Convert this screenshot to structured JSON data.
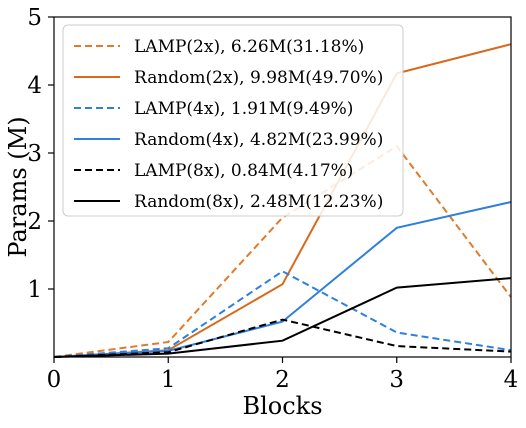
{
  "chart_data": {
    "type": "line",
    "xlabel": "Blocks",
    "ylabel": "Params (M)",
    "xlim": [
      0,
      4
    ],
    "ylim": [
      0,
      5
    ],
    "x_ticks": [
      "0",
      "1",
      "2",
      "3",
      "4"
    ],
    "y_ticks": [
      "1",
      "2",
      "3",
      "4",
      "5"
    ],
    "grid": false,
    "legend_position": "top-left",
    "x": [
      0,
      1,
      2,
      3,
      4
    ],
    "series": [
      {
        "name": "LAMP(2x), 6.26M(31.18%)",
        "color": "#E07B2A",
        "style": "dashed",
        "values": [
          0.0,
          0.22,
          2.05,
          3.1,
          0.88
        ]
      },
      {
        "name": "Random(2x), 9.98M(49.70%)",
        "color": "#D9681A",
        "style": "solid",
        "values": [
          0.0,
          0.1,
          1.07,
          4.17,
          4.6
        ]
      },
      {
        "name": "LAMP(4x), 1.91M(9.49%)",
        "color": "#2F7FDD",
        "style": "dashed",
        "values": [
          0.0,
          0.13,
          1.26,
          0.36,
          0.1
        ]
      },
      {
        "name": "Random(4x), 4.82M(23.99%)",
        "color": "#2F7FDD",
        "style": "solid",
        "values": [
          0.0,
          0.09,
          0.52,
          1.9,
          2.28
        ]
      },
      {
        "name": "LAMP(8x), 0.84M(4.17%)",
        "color": "#000000",
        "style": "dashed",
        "values": [
          0.0,
          0.07,
          0.55,
          0.16,
          0.08
        ]
      },
      {
        "name": "Random(8x), 2.48M(12.23%)",
        "color": "#000000",
        "style": "solid",
        "values": [
          0.0,
          0.05,
          0.24,
          1.02,
          1.16
        ]
      }
    ]
  }
}
